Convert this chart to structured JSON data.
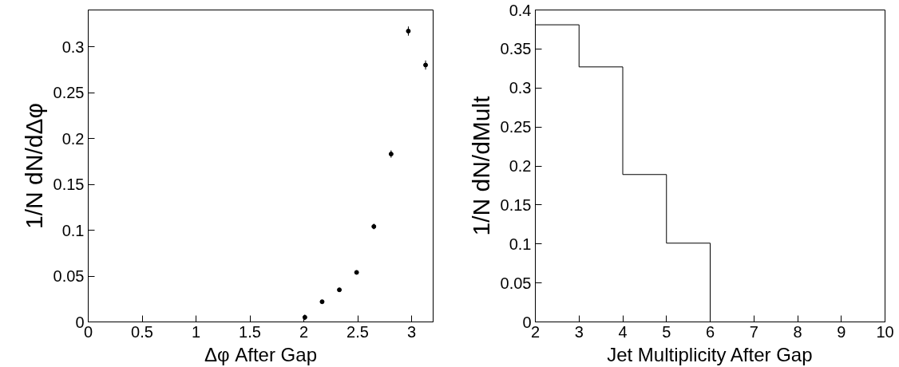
{
  "chart_data": [
    {
      "type": "scatter",
      "xlabel": "Δφ After Gap",
      "ylabel": "1/N dN/dΔφ",
      "x": [
        2.01,
        2.17,
        2.33,
        2.49,
        2.65,
        2.81,
        2.97,
        3.13
      ],
      "values": [
        0.005,
        0.022,
        0.035,
        0.054,
        0.104,
        0.183,
        0.317,
        0.28
      ],
      "errors": [
        0.003,
        0.0015,
        0.0015,
        0.002,
        0.003,
        0.004,
        0.005,
        0.005
      ],
      "color": "#000000",
      "marker": "circle",
      "xlim": [
        0,
        3.2
      ],
      "ylim": [
        0,
        0.34
      ],
      "xticks": [
        0,
        0.5,
        1,
        1.5,
        2,
        2.5,
        3
      ],
      "yticks": [
        0,
        0.05,
        0.1,
        0.15,
        0.2,
        0.25,
        0.3
      ],
      "grid": false
    },
    {
      "type": "histogram",
      "xlabel": "Jet Multiplicity After Gap",
      "ylabel": "1/N dN/dMult",
      "bins": [
        2,
        3,
        4,
        5,
        6,
        7,
        8,
        9,
        10
      ],
      "values": [
        0.381,
        0.327,
        0.189,
        0.101,
        0,
        0,
        0,
        0
      ],
      "color": "#000000",
      "xlim": [
        2,
        10
      ],
      "ylim": [
        0,
        0.4
      ],
      "xticks": [
        2,
        3,
        4,
        5,
        6,
        7,
        8,
        9,
        10
      ],
      "yticks": [
        0,
        0.05,
        0.1,
        0.15,
        0.2,
        0.25,
        0.3,
        0.35,
        0.4
      ],
      "grid": false
    }
  ]
}
